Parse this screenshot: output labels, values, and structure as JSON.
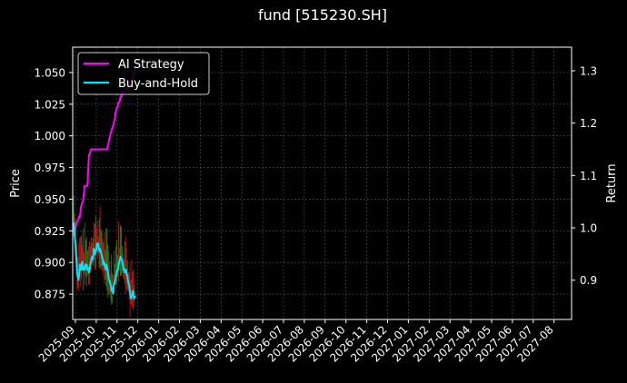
{
  "chart_data": {
    "type": "line",
    "title": "fund [515230.SH]",
    "ylabel_left": "Price",
    "ylabel_right": "Return",
    "ylim_left": [
      0.855,
      1.07
    ],
    "ylim_right": [
      0.825,
      1.345
    ],
    "left_ticks": [
      "0.875",
      "0.900",
      "0.925",
      "0.950",
      "0.975",
      "1.000",
      "1.025",
      "1.050"
    ],
    "left_tick_values": [
      0.875,
      0.9,
      0.925,
      0.95,
      0.975,
      1.0,
      1.025,
      1.05
    ],
    "right_ticks": [
      "0.9",
      "1.0",
      "1.1",
      "1.2",
      "1.3"
    ],
    "right_tick_values": [
      0.9,
      1.0,
      1.1,
      1.2,
      1.3
    ],
    "x_ticks": [
      "2025-09",
      "2025-10",
      "2025-11",
      "2025-12",
      "2026-01",
      "2026-02",
      "2026-03",
      "2026-04",
      "2026-05",
      "2026-06",
      "2026-07",
      "2026-08",
      "2026-09",
      "2026-10",
      "2026-11",
      "2026-12",
      "2027-01",
      "2027-02",
      "2027-03",
      "2027-04",
      "2027-05",
      "2027-06",
      "2027-07",
      "2027-08"
    ],
    "grid": true,
    "legend_position": "top-left",
    "colors": {
      "ai": "#ff00ff",
      "buy_hold": "#00e5ff",
      "up": "#2e8b20",
      "down": "#cc1a1a",
      "grid": "#555555"
    },
    "series": [
      {
        "name": "AI Strategy",
        "axis": "right",
        "x": [
          0,
          1,
          2,
          3,
          4,
          5,
          6,
          7,
          8,
          9,
          10,
          11,
          12,
          13,
          14,
          15,
          16,
          17,
          18,
          19,
          20,
          21,
          22,
          23,
          24,
          25,
          26,
          27,
          28,
          29,
          30,
          31,
          32,
          33,
          34,
          35,
          36,
          37,
          38,
          39,
          40,
          41,
          42,
          43,
          44,
          45,
          46,
          47,
          48,
          49,
          50,
          51,
          52,
          53,
          54,
          55,
          56,
          57,
          58,
          59,
          60,
          61,
          62,
          63,
          64,
          65,
          66,
          67,
          68,
          69,
          70,
          71,
          72,
          73,
          74,
          75,
          76,
          77,
          78,
          79,
          80,
          81,
          82,
          83,
          84,
          85,
          86,
          87,
          88,
          89,
          90,
          91,
          92,
          93,
          94,
          95,
          96,
          97,
          98,
          99,
          100
        ],
        "values": [
          1.0,
          0.995,
          0.99,
          0.998,
          1.005,
          1.01,
          1.012,
          1.015,
          1.018,
          1.022,
          1.02,
          1.03,
          1.04,
          1.045,
          1.048,
          1.05,
          1.06,
          1.07,
          1.08,
          1.08,
          1.08,
          1.08,
          1.08,
          1.09,
          1.12,
          1.14,
          1.14,
          1.145,
          1.15,
          1.15,
          1.15,
          1.15,
          1.15,
          1.15,
          1.15,
          1.15,
          1.15,
          1.15,
          1.15,
          1.15,
          1.15,
          1.15,
          1.15,
          1.15,
          1.15,
          1.15,
          1.15,
          1.15,
          1.15,
          1.15,
          1.15,
          1.15,
          1.15,
          1.15,
          1.15,
          1.155,
          1.16,
          1.165,
          1.17,
          1.175,
          1.18,
          1.185,
          1.19,
          1.19,
          1.195,
          1.2,
          1.205,
          1.21,
          1.22,
          1.225,
          1.23,
          1.23,
          1.235,
          1.24,
          1.24,
          1.245,
          1.25,
          1.25,
          1.255,
          1.255,
          1.26,
          1.26,
          1.26,
          1.26,
          1.26,
          1.26,
          1.265,
          1.27,
          1.27,
          1.27,
          1.27,
          1.275,
          1.28,
          1.28,
          1.28,
          1.28,
          1.285,
          1.29,
          1.295,
          1.3,
          1.31
        ]
      },
      {
        "name": "Buy-and-Hold",
        "axis": "right",
        "x": [
          0,
          1,
          2,
          3,
          4,
          5,
          6,
          7,
          8,
          9,
          10,
          11,
          12,
          13,
          14,
          15,
          16,
          17,
          18,
          19,
          20,
          21,
          22,
          23,
          24,
          25,
          26,
          27,
          28,
          29,
          30,
          31,
          32,
          33,
          34,
          35,
          36,
          37,
          38,
          39,
          40,
          41,
          42,
          43,
          44,
          45,
          46,
          47,
          48,
          49,
          50,
          51,
          52,
          53,
          54,
          55,
          56,
          57,
          58,
          59,
          60,
          61,
          62,
          63,
          64,
          65,
          66,
          67,
          68,
          69,
          70,
          71,
          72,
          73,
          74,
          75,
          76,
          77,
          78,
          79,
          80,
          81,
          82,
          83,
          84,
          85,
          86,
          87,
          88,
          89,
          90,
          91,
          92,
          93,
          94,
          95,
          96,
          97,
          98,
          99,
          100
        ],
        "values": [
          1.01,
          1.0,
          0.98,
          0.97,
          0.95,
          0.93,
          0.91,
          0.905,
          0.9,
          0.91,
          0.93,
          0.92,
          0.92,
          0.93,
          0.935,
          0.92,
          0.92,
          0.925,
          0.92,
          0.93,
          0.93,
          0.93,
          0.92,
          0.925,
          0.92,
          0.915,
          0.92,
          0.93,
          0.935,
          0.94,
          0.945,
          0.94,
          0.945,
          0.96,
          0.955,
          0.95,
          0.955,
          0.96,
          0.97,
          0.965,
          0.97,
          0.96,
          0.955,
          0.96,
          0.955,
          0.95,
          0.945,
          0.94,
          0.93,
          0.935,
          0.93,
          0.925,
          0.92,
          0.93,
          0.925,
          0.92,
          0.91,
          0.9,
          0.9,
          0.895,
          0.89,
          0.88,
          0.885,
          0.88,
          0.875,
          0.89,
          0.895,
          0.9,
          0.905,
          0.91,
          0.915,
          0.92,
          0.92,
          0.93,
          0.935,
          0.94,
          0.945,
          0.94,
          0.94,
          0.935,
          0.93,
          0.92,
          0.92,
          0.915,
          0.92,
          0.92,
          0.91,
          0.91,
          0.9,
          0.895,
          0.89,
          0.88,
          0.87,
          0.865,
          0.87,
          0.875,
          0.88,
          0.87,
          0.865,
          0.868,
          0.87
        ]
      }
    ]
  }
}
